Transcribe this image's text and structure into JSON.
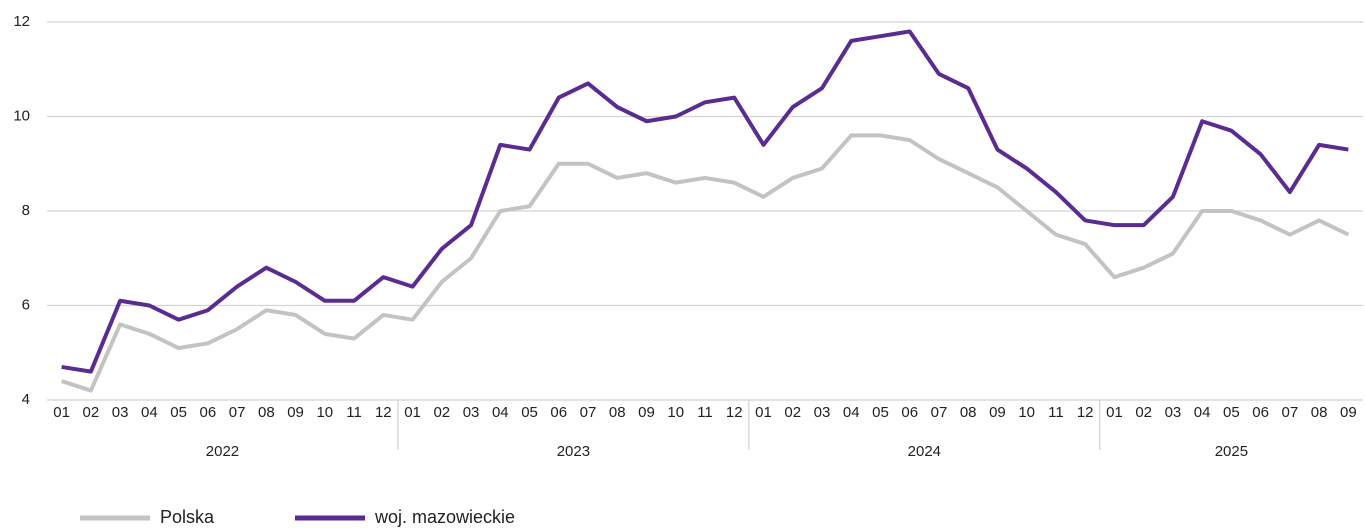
{
  "chart_data": {
    "type": "line",
    "categories": [
      "01",
      "02",
      "03",
      "04",
      "05",
      "06",
      "07",
      "08",
      "09",
      "10",
      "11",
      "12",
      "01",
      "02",
      "03",
      "04",
      "05",
      "06",
      "07",
      "08",
      "09",
      "10",
      "11",
      "12",
      "01",
      "02",
      "03",
      "04",
      "05",
      "06",
      "07",
      "08",
      "09",
      "10",
      "11",
      "12",
      "01",
      "02",
      "03",
      "04",
      "05",
      "06",
      "07",
      "08",
      "09"
    ],
    "group_labels": [
      "2022",
      "2023",
      "2024",
      "2025"
    ],
    "series": [
      {
        "name": "Polska",
        "color": "#c3c3c3",
        "values": [
          4.4,
          4.2,
          5.6,
          5.4,
          5.1,
          5.2,
          5.5,
          5.9,
          5.8,
          5.4,
          5.3,
          5.8,
          5.7,
          6.5,
          7.0,
          8.0,
          8.1,
          9.0,
          9.0,
          8.7,
          8.8,
          8.6,
          8.7,
          8.6,
          8.3,
          8.7,
          8.9,
          9.6,
          9.6,
          9.5,
          9.1,
          8.8,
          8.5,
          8.0,
          7.5,
          7.3,
          6.6,
          6.8,
          7.1,
          8.0,
          8.0,
          7.8,
          7.5,
          7.8,
          7.5
        ]
      },
      {
        "name": "woj. mazowieckie",
        "color": "#5a2b91",
        "values": [
          4.7,
          4.6,
          6.1,
          6.0,
          5.7,
          5.9,
          6.4,
          6.8,
          6.5,
          6.1,
          6.1,
          6.6,
          6.4,
          7.2,
          7.7,
          9.4,
          9.3,
          10.4,
          10.7,
          10.2,
          9.9,
          10.0,
          10.3,
          10.4,
          9.4,
          10.2,
          10.6,
          11.6,
          11.7,
          11.8,
          10.9,
          10.6,
          9.3,
          8.9,
          8.4,
          7.8,
          7.7,
          7.7,
          8.3,
          9.9,
          9.7,
          9.2,
          8.4,
          9.4,
          9.3
        ]
      }
    ],
    "ylim": [
      4,
      12
    ],
    "yticks": [
      4,
      6,
      8,
      10,
      12
    ],
    "grid": true,
    "legend": "bottom-left"
  }
}
